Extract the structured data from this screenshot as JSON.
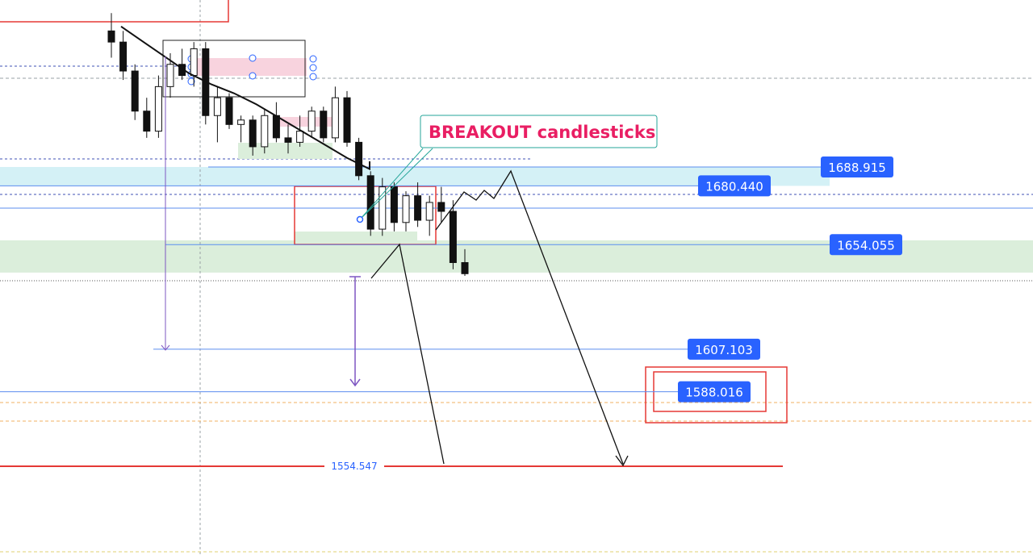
{
  "annotation": {
    "text": "BREAKOUT candlesticks"
  },
  "colors": {
    "label_bg": "#2962ff",
    "label_text": "#ffffff",
    "annotation_text": "#e91e63",
    "annotation_border": "#26a69a",
    "red_line": "#e53935",
    "blue_zone": "#d4f1f6",
    "green_zone": "#dbeedb",
    "pink_zone": "#f8d3de",
    "projection_arrow": "#7e57c2"
  },
  "chart_data": {
    "type": "candlestick",
    "title": "",
    "price_range": [
      1544,
      1760
    ],
    "price_labels": [
      {
        "name": "level-1688",
        "value": 1688.915,
        "text": "1688.915",
        "style": "box"
      },
      {
        "name": "level-1680",
        "value": 1680.44,
        "text": "1680.440",
        "style": "box"
      },
      {
        "name": "level-1654",
        "value": 1654.055,
        "text": "1654.055",
        "style": "box"
      },
      {
        "name": "level-1607",
        "value": 1607.103,
        "text": "1607.103",
        "style": "box"
      },
      {
        "name": "level-1588",
        "value": 1588.016,
        "text": "1588.016",
        "style": "box",
        "highlight": true
      },
      {
        "name": "level-1554",
        "value": 1554.547,
        "text": "1554.547",
        "style": "plain",
        "line_color": "red"
      }
    ],
    "zones": [
      {
        "name": "resistance-zone",
        "from": 1680.44,
        "to": 1688.915,
        "color": "blue"
      },
      {
        "name": "support-zone",
        "from": 1641.5,
        "to": 1656.0,
        "color": "green"
      }
    ],
    "candles": [
      {
        "o": 1750,
        "h": 1758,
        "l": 1738,
        "c": 1745
      },
      {
        "o": 1745,
        "h": 1750,
        "l": 1728,
        "c": 1732
      },
      {
        "o": 1732,
        "h": 1735,
        "l": 1710,
        "c": 1714
      },
      {
        "o": 1714,
        "h": 1720,
        "l": 1702,
        "c": 1705
      },
      {
        "o": 1705,
        "h": 1730,
        "l": 1702,
        "c": 1725
      },
      {
        "o": 1725,
        "h": 1740,
        "l": 1720,
        "c": 1735
      },
      {
        "o": 1735,
        "h": 1742,
        "l": 1728,
        "c": 1730
      },
      {
        "o": 1730,
        "h": 1745,
        "l": 1725,
        "c": 1742
      },
      {
        "o": 1742,
        "h": 1745,
        "l": 1708,
        "c": 1712
      },
      {
        "o": 1712,
        "h": 1725,
        "l": 1700,
        "c": 1720
      },
      {
        "o": 1720,
        "h": 1722,
        "l": 1706,
        "c": 1708
      },
      {
        "o": 1708,
        "h": 1712,
        "l": 1700,
        "c": 1710
      },
      {
        "o": 1710,
        "h": 1712,
        "l": 1694,
        "c": 1698
      },
      {
        "o": 1698,
        "h": 1715,
        "l": 1695,
        "c": 1712
      },
      {
        "o": 1712,
        "h": 1718,
        "l": 1700,
        "c": 1702
      },
      {
        "o": 1702,
        "h": 1708,
        "l": 1695,
        "c": 1700
      },
      {
        "o": 1700,
        "h": 1712,
        "l": 1698,
        "c": 1705
      },
      {
        "o": 1705,
        "h": 1716,
        "l": 1702,
        "c": 1714
      },
      {
        "o": 1714,
        "h": 1716,
        "l": 1700,
        "c": 1702
      },
      {
        "o": 1702,
        "h": 1725,
        "l": 1700,
        "c": 1720
      },
      {
        "o": 1720,
        "h": 1723,
        "l": 1698,
        "c": 1700
      },
      {
        "o": 1700,
        "h": 1702,
        "l": 1683,
        "c": 1685
      },
      {
        "o": 1685,
        "h": 1687,
        "l": 1658,
        "c": 1661
      },
      {
        "o": 1661,
        "h": 1684,
        "l": 1658,
        "c": 1680
      },
      {
        "o": 1680,
        "h": 1682,
        "l": 1660,
        "c": 1664
      },
      {
        "o": 1664,
        "h": 1678,
        "l": 1660,
        "c": 1676
      },
      {
        "o": 1676,
        "h": 1682,
        "l": 1662,
        "c": 1665
      },
      {
        "o": 1665,
        "h": 1676,
        "l": 1658,
        "c": 1673
      },
      {
        "o": 1673,
        "h": 1680,
        "l": 1664,
        "c": 1669
      },
      {
        "o": 1669,
        "h": 1674,
        "l": 1643,
        "c": 1646
      },
      {
        "o": 1646,
        "h": 1652,
        "l": 1640,
        "c": 1641
      }
    ],
    "moving_average": [
      1752,
      1745,
      1738,
      1731,
      1726,
      1722,
      1717,
      1711,
      1705,
      1699,
      1693,
      1688
    ]
  }
}
